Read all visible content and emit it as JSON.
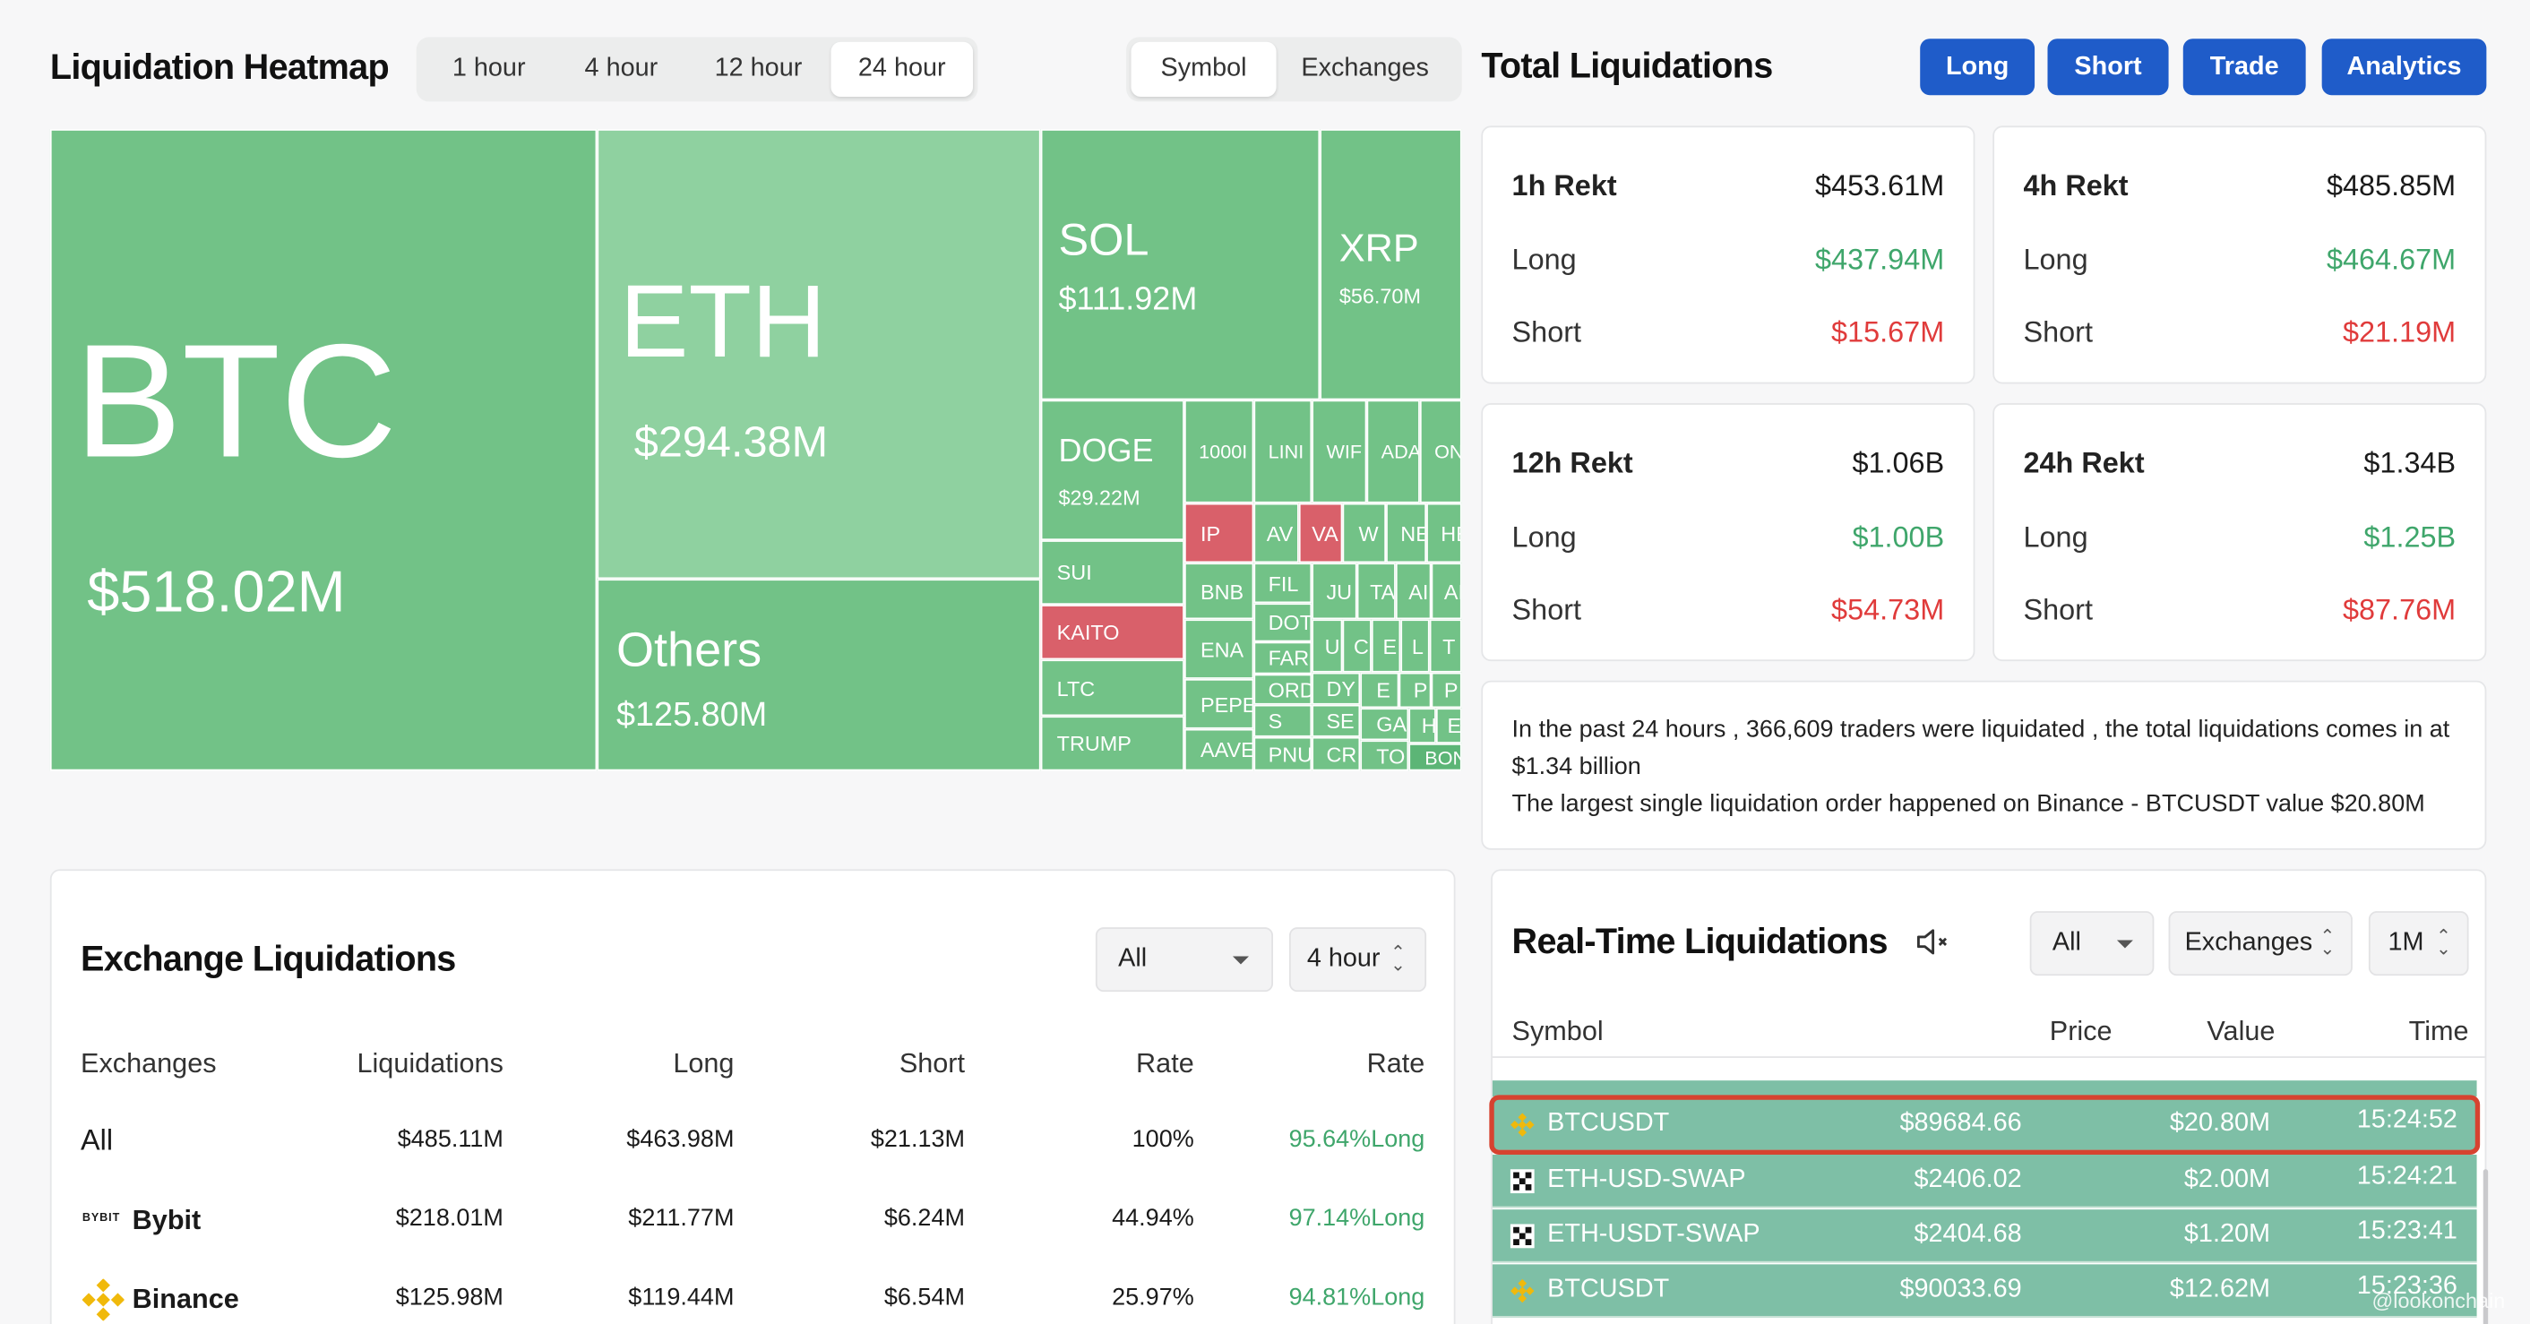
{
  "heatmap": {
    "title": "Liquidation Heatmap",
    "time_tabs": [
      "1 hour",
      "4 hour",
      "12 hour",
      "24 hour"
    ],
    "view_tabs": [
      "Symbol",
      "Exchanges"
    ],
    "tiles": {
      "btc": {
        "symbol": "BTC",
        "value": "$518.02M"
      },
      "eth": {
        "symbol": "ETH",
        "value": "$294.38M"
      },
      "others": {
        "symbol": "Others",
        "value": "$125.80M"
      },
      "sol": {
        "symbol": "SOL",
        "value": "$111.92M"
      },
      "xrp": {
        "symbol": "XRP",
        "value": "$56.70M"
      },
      "doge": {
        "symbol": "DOGE",
        "value": "$29.22M"
      },
      "small": [
        "SUI",
        "KAITO",
        "LTC",
        "TRUMP",
        "1000I",
        "LINI",
        "WIF",
        "ADA",
        "ONI",
        "IP",
        "AV",
        "VA",
        "W",
        "NE",
        "HE",
        "BNB",
        "FIL",
        "JU",
        "TA",
        "AI",
        "AI",
        "ENA",
        "DOT",
        "FAR",
        "U",
        "C",
        "E",
        "L",
        "T",
        "PEPE",
        "ORD",
        "DY",
        "E",
        "P",
        "P",
        "S",
        "SE",
        "GA",
        "H",
        "E",
        "AAVE",
        "PNU",
        "CR",
        "TO",
        "BON"
      ]
    }
  },
  "total": {
    "title": "Total Liquidations",
    "buttons": [
      "Long",
      "Short",
      "Trade",
      "Analytics"
    ],
    "cards": [
      {
        "label": "1h Rekt",
        "total": "$453.61M",
        "long_label": "Long",
        "long": "$437.94M",
        "short_label": "Short",
        "short": "$15.67M"
      },
      {
        "label": "4h Rekt",
        "total": "$485.85M",
        "long_label": "Long",
        "long": "$464.67M",
        "short_label": "Short",
        "short": "$21.19M"
      },
      {
        "label": "12h Rekt",
        "total": "$1.06B",
        "long_label": "Long",
        "long": "$1.00B",
        "short_label": "Short",
        "short": "$54.73M"
      },
      {
        "label": "24h Rekt",
        "total": "$1.34B",
        "long_label": "Long",
        "long": "$1.25B",
        "short_label": "Short",
        "short": "$87.76M"
      }
    ],
    "summary_line1": "In the past 24 hours , 366,609 traders were liquidated , the total liquidations comes in at $1.34 billion",
    "summary_line2": "The largest single liquidation order happened on Binance - BTCUSDT value $20.80M"
  },
  "exchange": {
    "title": "Exchange Liquidations",
    "filter": "All",
    "period": "4 hour",
    "headers": [
      "Exchanges",
      "Liquidations",
      "Long",
      "Short",
      "Rate",
      "Rate"
    ],
    "rows": [
      {
        "name": "All",
        "liq": "$485.11M",
        "long": "$463.98M",
        "short": "$21.13M",
        "rate": "100%",
        "ratio": "95.64%Long"
      },
      {
        "name": "Bybit",
        "logo": "BYBIT",
        "liq": "$218.01M",
        "long": "$211.77M",
        "short": "$6.24M",
        "rate": "44.94%",
        "ratio": "97.14%Long"
      },
      {
        "name": "Binance",
        "liq": "$125.98M",
        "long": "$119.44M",
        "short": "$6.54M",
        "rate": "25.97%",
        "ratio": "94.81%Long"
      }
    ]
  },
  "realtime": {
    "title": "Real-Time Liquidations",
    "filter": "All",
    "exchanges": "Exchanges",
    "min": "1M",
    "headers": [
      "Symbol",
      "Price",
      "Value",
      "Time"
    ],
    "rows": [
      {
        "symbol": "BTCUSDT",
        "exchange_icon": "binance-icon",
        "price": "$89684.66",
        "value": "$20.80M",
        "time": "15:24:52"
      },
      {
        "symbol": "ETH-USD-SWAP",
        "exchange_icon": "okx-icon",
        "price": "$2406.02",
        "value": "$2.00M",
        "time": "15:24:21"
      },
      {
        "symbol": "ETH-USDT-SWAP",
        "exchange_icon": "okx-icon",
        "price": "$2404.68",
        "value": "$1.20M",
        "time": "15:23:41"
      },
      {
        "symbol": "BTCUSDT",
        "exchange_icon": "binance-icon",
        "price": "$90033.69",
        "value": "$12.62M",
        "time": "15:23:36"
      }
    ],
    "watermark": "@lookonchain"
  },
  "colors": {
    "green": "#3fa66b",
    "red": "#e03b3b",
    "blue": "#1f5cc9",
    "tile_green": "#72c287",
    "tile_red": "#d9606a"
  }
}
